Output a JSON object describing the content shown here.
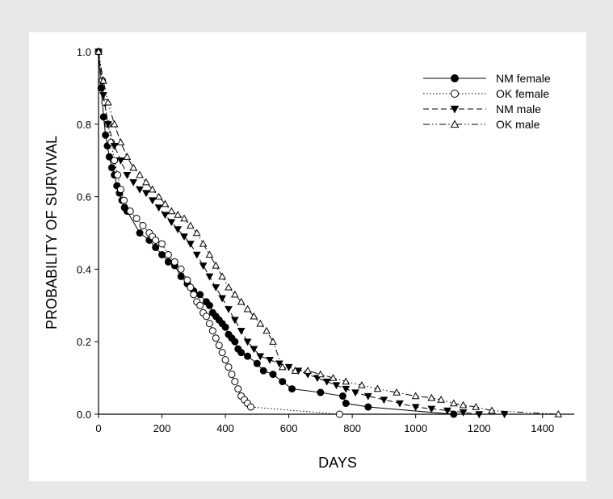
{
  "chart_data": {
    "type": "line",
    "title": "",
    "xlabel": "DAYS",
    "ylabel": "PROBABILITY OF SURVIVAL",
    "xlim": [
      0,
      1500
    ],
    "ylim": [
      0,
      1.0
    ],
    "xticks": [
      0,
      200,
      400,
      600,
      800,
      1000,
      1200,
      1400
    ],
    "yticks": [
      0.0,
      0.2,
      0.4,
      0.6,
      0.8,
      1.0
    ],
    "xtick_labels": [
      "0",
      "200",
      "400",
      "600",
      "800",
      "1000",
      "1200",
      "1400"
    ],
    "ytick_labels": [
      "0.0",
      "0.2",
      "0.4",
      "0.6",
      "0.8",
      "1.0"
    ],
    "grid": false,
    "legend_position": "top-right",
    "series": [
      {
        "name": "NM female",
        "line_style": "solid",
        "marker": "filled-circle",
        "color": "#000000",
        "x": [
          0,
          8,
          16,
          22,
          28,
          34,
          42,
          50,
          58,
          66,
          74,
          82,
          90,
          130,
          160,
          180,
          200,
          220,
          240,
          260,
          280,
          300,
          320,
          340,
          350,
          360,
          370,
          380,
          390,
          400,
          410,
          420,
          430,
          440,
          450,
          470,
          500,
          520,
          550,
          580,
          610,
          700,
          770,
          780,
          850,
          1120
        ],
        "y": [
          1.0,
          0.9,
          0.82,
          0.77,
          0.74,
          0.71,
          0.68,
          0.66,
          0.63,
          0.61,
          0.59,
          0.57,
          0.56,
          0.5,
          0.48,
          0.46,
          0.44,
          0.42,
          0.41,
          0.38,
          0.36,
          0.34,
          0.33,
          0.31,
          0.3,
          0.28,
          0.27,
          0.26,
          0.25,
          0.24,
          0.22,
          0.21,
          0.2,
          0.18,
          0.17,
          0.16,
          0.14,
          0.12,
          0.11,
          0.09,
          0.07,
          0.06,
          0.05,
          0.03,
          0.02,
          0.0
        ]
      },
      {
        "name": "OK female",
        "line_style": "dotted",
        "marker": "open-circle",
        "color": "#000000",
        "x": [
          0,
          12,
          20,
          30,
          40,
          50,
          60,
          70,
          80,
          100,
          120,
          140,
          160,
          170,
          180,
          200,
          220,
          240,
          260,
          280,
          290,
          300,
          310,
          320,
          330,
          340,
          350,
          360,
          370,
          380,
          390,
          400,
          410,
          420,
          430,
          440,
          450,
          460,
          470,
          480,
          760
        ],
        "y": [
          1.0,
          0.92,
          0.86,
          0.8,
          0.75,
          0.7,
          0.66,
          0.62,
          0.59,
          0.56,
          0.54,
          0.52,
          0.5,
          0.49,
          0.48,
          0.47,
          0.44,
          0.42,
          0.4,
          0.37,
          0.35,
          0.33,
          0.31,
          0.3,
          0.28,
          0.27,
          0.25,
          0.23,
          0.21,
          0.19,
          0.17,
          0.15,
          0.13,
          0.11,
          0.09,
          0.07,
          0.05,
          0.04,
          0.03,
          0.02,
          0.0
        ]
      },
      {
        "name": "NM male",
        "line_style": "dashed",
        "marker": "filled-triangle-down",
        "color": "#000000",
        "x": [
          0,
          15,
          30,
          50,
          70,
          90,
          110,
          130,
          150,
          170,
          190,
          210,
          230,
          250,
          270,
          290,
          310,
          330,
          350,
          370,
          390,
          410,
          430,
          450,
          470,
          490,
          510,
          540,
          570,
          600,
          630,
          660,
          690,
          720,
          750,
          780,
          810,
          850,
          900,
          950,
          1000,
          1050,
          1100,
          1150,
          1200,
          1280
        ],
        "y": [
          1.0,
          0.88,
          0.8,
          0.74,
          0.7,
          0.66,
          0.64,
          0.62,
          0.61,
          0.59,
          0.57,
          0.55,
          0.53,
          0.51,
          0.49,
          0.47,
          0.44,
          0.41,
          0.38,
          0.35,
          0.32,
          0.29,
          0.26,
          0.23,
          0.2,
          0.18,
          0.16,
          0.15,
          0.14,
          0.13,
          0.12,
          0.11,
          0.1,
          0.09,
          0.08,
          0.07,
          0.06,
          0.05,
          0.04,
          0.03,
          0.02,
          0.015,
          0.01,
          0.005,
          0.0,
          0.0
        ]
      },
      {
        "name": "OK male",
        "line_style": "dash-dot-dot",
        "marker": "open-triangle-up",
        "color": "#000000",
        "x": [
          0,
          15,
          30,
          50,
          70,
          90,
          110,
          130,
          150,
          170,
          190,
          210,
          230,
          250,
          270,
          290,
          310,
          330,
          350,
          370,
          390,
          410,
          430,
          450,
          470,
          490,
          510,
          530,
          550,
          580,
          620,
          660,
          700,
          740,
          780,
          830,
          880,
          940,
          1000,
          1050,
          1080,
          1120,
          1150,
          1190,
          1240,
          1450
        ],
        "y": [
          1.0,
          0.92,
          0.86,
          0.8,
          0.75,
          0.71,
          0.68,
          0.66,
          0.64,
          0.62,
          0.6,
          0.58,
          0.56,
          0.55,
          0.54,
          0.52,
          0.5,
          0.47,
          0.44,
          0.41,
          0.38,
          0.35,
          0.33,
          0.31,
          0.29,
          0.27,
          0.25,
          0.23,
          0.2,
          0.13,
          0.12,
          0.12,
          0.11,
          0.1,
          0.09,
          0.08,
          0.07,
          0.06,
          0.05,
          0.045,
          0.04,
          0.03,
          0.025,
          0.02,
          0.01,
          0.0
        ]
      }
    ]
  }
}
